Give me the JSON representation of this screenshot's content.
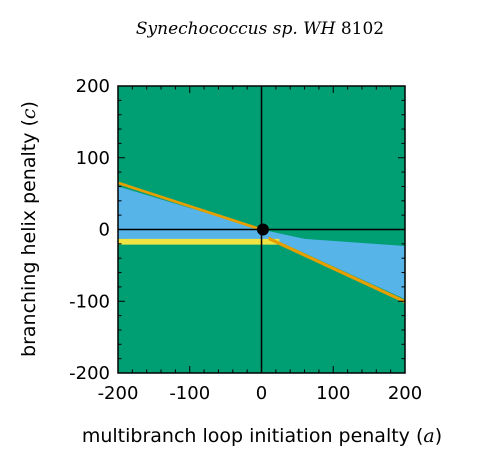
{
  "chart_data": {
    "type": "area",
    "title_prefix": "Synechococcus sp. WH",
    "title_number": "8102",
    "xlabel": "multibranch loop initiation penalty",
    "xlabel_var": "a",
    "ylabel": "branching helix penalty",
    "ylabel_var": "c",
    "xlim": [
      -200,
      200
    ],
    "ylim": [
      -200,
      200
    ],
    "xticks": [
      -200,
      -100,
      0,
      100,
      200
    ],
    "yticks": [
      -200,
      -100,
      0,
      100,
      200
    ],
    "xtick_labels": [
      "-200",
      "-100",
      "0",
      "100",
      "200"
    ],
    "ytick_labels": [
      "-200",
      "-100",
      "0",
      "100",
      "200"
    ],
    "grid": false,
    "background_region_color": "#009e73",
    "regions": [
      {
        "color": "#56b4e9",
        "polygon": [
          [
            -200,
            60
          ],
          [
            0,
            0
          ],
          [
            60,
            -13
          ],
          [
            200,
            -23
          ],
          [
            200,
            -97
          ],
          [
            25,
            -17
          ],
          [
            -200,
            -13
          ]
        ]
      },
      {
        "color": "#f0e442",
        "polygon": [
          [
            -200,
            -13
          ],
          [
            25,
            -13
          ],
          [
            25,
            -21
          ],
          [
            -200,
            -21
          ]
        ]
      },
      {
        "color": "#e69f00",
        "polygon": [
          [
            -200,
            67
          ],
          [
            0,
            2
          ],
          [
            0,
            -2
          ],
          [
            -200,
            63
          ]
        ]
      },
      {
        "color": "#e69f00",
        "polygon": [
          [
            10,
            -10
          ],
          [
            200,
            -98
          ],
          [
            200,
            -103
          ],
          [
            10,
            -15
          ]
        ]
      }
    ],
    "reference_lines": {
      "x": 0,
      "y": 0,
      "color": "#000000"
    },
    "point": {
      "x": 2,
      "y": 0,
      "color": "#000000"
    }
  }
}
